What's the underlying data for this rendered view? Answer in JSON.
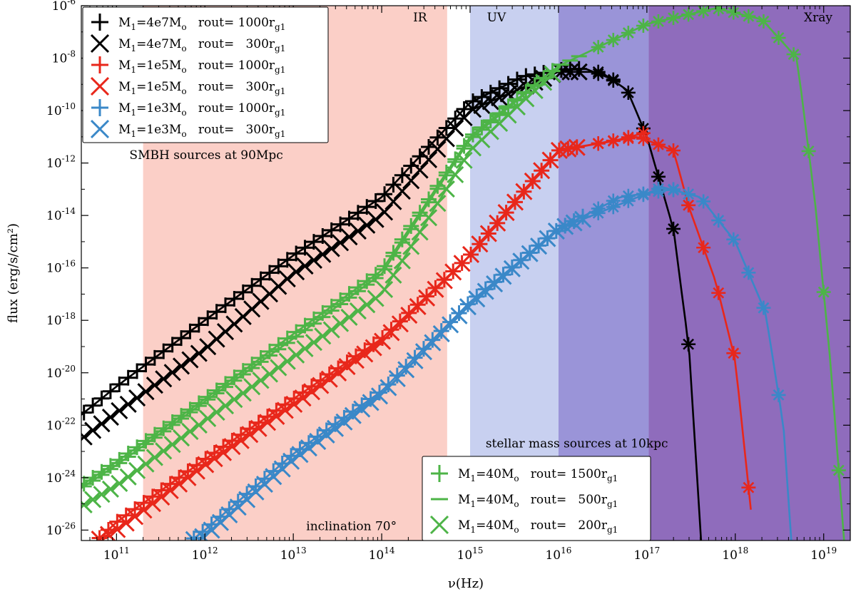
{
  "chart_data": {
    "type": "line",
    "title": "",
    "xlabel": "ν(Hz)",
    "ylabel": "flux (erg/s/cm²)",
    "xscale": "log",
    "yscale": "log",
    "xlim": [
      40000000000.0,
      2e+19
    ],
    "ylim": [
      4e-27,
      1e-06
    ],
    "x_ticks": [
      {
        "value": 100000000000.0,
        "label": "10^11"
      },
      {
        "value": 1000000000000.0,
        "label": "10^12"
      },
      {
        "value": 10000000000000.0,
        "label": "10^13"
      },
      {
        "value": 100000000000000.0,
        "label": "10^14"
      },
      {
        "value": 1000000000000000.0,
        "label": "10^15"
      },
      {
        "value": 1e+16,
        "label": "10^16"
      },
      {
        "value": 1e+17,
        "label": "10^17"
      },
      {
        "value": 1e+18,
        "label": "10^18"
      },
      {
        "value": 1e+19,
        "label": "10^19"
      }
    ],
    "y_ticks": [
      {
        "value": 1e-06,
        "label": "10^-6"
      },
      {
        "value": 1e-08,
        "label": "10^-8"
      },
      {
        "value": 1e-10,
        "label": "10^-10"
      },
      {
        "value": 1e-12,
        "label": "10^-12"
      },
      {
        "value": 1e-14,
        "label": "10^-14"
      },
      {
        "value": 1e-16,
        "label": "10^-16"
      },
      {
        "value": 1e-18,
        "label": "10^-18"
      },
      {
        "value": 1e-20,
        "label": "10^-20"
      },
      {
        "value": 1e-22,
        "label": "10^-22"
      },
      {
        "value": 1e-24,
        "label": "10^-24"
      },
      {
        "value": 1e-26,
        "label": "10^-26"
      }
    ],
    "bands": [
      {
        "name": "IR",
        "label": "IR",
        "x_range": [
          200000000000.0,
          550000000000000.0
        ],
        "color": "#fbcfc7"
      },
      {
        "name": "UV",
        "label": "UV",
        "x_range": [
          1000000000000000.0,
          1e+16
        ],
        "color": "#c8d0f0"
      },
      {
        "name": "EUV",
        "label": "",
        "x_range": [
          1e+16,
          1.05e+17
        ],
        "color": "#9a94d8"
      },
      {
        "name": "Xray",
        "label": "Xray",
        "x_range": [
          1.05e+17,
          2e+19
        ],
        "color": "#8f6cbc"
      }
    ],
    "annotations": [
      {
        "text": "SMBH sources at 90Mpc",
        "at": [
          140000000000.0,
          1.4e-12
        ]
      },
      {
        "text": "stellar mass sources at 10kpc",
        "at": [
          1500000000000000.0,
          1.4e-23
        ]
      },
      {
        "text": "inclination 70°",
        "at": [
          14000000000000.0,
          1e-26
        ]
      }
    ],
    "series": [
      {
        "name": "M1=4e7Mo rout=1000rg1",
        "color": "#000000",
        "marker": "plus",
        "legend": "smbh",
        "x": [
          40000000000.0,
          100000000000.0,
          1000000000000.0,
          10000000000000.0,
          100000000000000.0,
          1000000000000000.0,
          4000000000000000.0,
          1e+16,
          2e+16,
          5e+16
        ],
        "y": [
          2.5e-22,
          3e-21,
          1e-18,
          3e-16,
          5e-14,
          2e-10,
          2e-09,
          3.5e-09,
          4e-09,
          1.2e-09
        ]
      },
      {
        "name": "M1=4e7Mo rout=300rg1",
        "color": "#000000",
        "marker": "x",
        "legend": "smbh",
        "x": [
          40000000000.0,
          100000000000.0,
          1000000000000.0,
          10000000000000.0,
          100000000000000.0,
          1000000000000000.0,
          1e+16,
          3e+16,
          6e+16,
          1e+17,
          2e+17,
          3e+17,
          4.1e+17
        ],
        "y": [
          3e-23,
          3e-22,
          8e-20,
          6e-17,
          1e-14,
          1e-10,
          3e-09,
          3e-09,
          6e-10,
          1e-11,
          3e-15,
          8e-20,
          4e-27
        ]
      },
      {
        "name": "M1=1e5Mo rout=1000rg1",
        "color": "#e8271b",
        "marker": "plus",
        "legend": "smbh",
        "x": [
          60000000000.0,
          100000000000.0,
          1000000000000.0,
          10000000000000.0,
          100000000000000.0,
          1000000000000000.0,
          1e+16,
          5e+16,
          1e+17
        ],
        "y": [
          4e-27,
          2e-26,
          5e-24,
          1e-21,
          2e-19,
          3e-16,
          3e-12,
          8e-12,
          1.5e-11
        ]
      },
      {
        "name": "M1=1e5Mo rout=300rg1",
        "color": "#e8271b",
        "marker": "x",
        "legend": "smbh",
        "x": [
          60000000000.0,
          100000000000.0,
          1000000000000.0,
          10000000000000.0,
          100000000000000.0,
          1000000000000000.0,
          1e+16,
          8e+16,
          2e+17,
          3e+17,
          6e+17,
          1e+18,
          1.5e+18
        ],
        "y": [
          4e-27,
          1e-26,
          3e-24,
          6e-22,
          1.5e-19,
          3e-16,
          3e-12,
          1e-11,
          3e-12,
          2e-14,
          3e-17,
          3e-20,
          6e-26
        ]
      },
      {
        "name": "M1=1e3Mo rout=1000rg1",
        "color": "#3a88c8",
        "marker": "plus",
        "legend": "smbh",
        "x": [
          700000000000.0,
          1000000000000.0,
          10000000000000.0,
          100000000000000.0,
          1000000000000000.0,
          1e+16,
          5e+16,
          2e+17
        ],
        "y": [
          4e-27,
          1e-26,
          8e-24,
          2e-21,
          5e-18,
          3e-15,
          5e-14,
          1e-13
        ]
      },
      {
        "name": "M1=1e3Mo rout=300rg1",
        "color": "#3a88c8",
        "marker": "x",
        "legend": "smbh",
        "x": [
          700000000000.0,
          1000000000000.0,
          10000000000000.0,
          100000000000000.0,
          1000000000000000.0,
          1e+16,
          1.5e+17,
          4e+17,
          1e+18,
          2.2e+18,
          3.5e+18,
          4.3e+18
        ],
        "y": [
          4e-27,
          6e-27,
          5e-24,
          1.5e-21,
          4e-18,
          3e-15,
          1.2e-13,
          5e-14,
          1e-15,
          2e-18,
          1e-22,
          4e-27
        ]
      },
      {
        "name": "M1=40Mo rout=1500rg1",
        "color": "#4db447",
        "marker": "plus",
        "legend": "stellar",
        "x": [
          40000000000.0,
          100000000000.0,
          1000000000000.0,
          10000000000000.0,
          100000000000000.0,
          1000000000000000.0,
          1e+16
        ],
        "y": [
          5e-25,
          4e-24,
          1e-21,
          3e-19,
          8e-17,
          1e-11,
          5e-09
        ]
      },
      {
        "name": "M1=40Mo rout=500rg1",
        "color": "#4db447",
        "marker": "dash",
        "legend": "stellar",
        "x": [
          40000000000.0,
          100000000000.0,
          1000000000000.0,
          10000000000000.0,
          100000000000000.0,
          1000000000000000.0,
          1e+16,
          1e+17,
          6e+17,
          2e+18,
          5e+18,
          8e+18,
          1.2e+19,
          1.7e+19
        ],
        "y": [
          4e-25,
          3e-24,
          8e-22,
          2e-19,
          6e-17,
          8e-12,
          5e-09,
          2e-07,
          8e-07,
          3e-07,
          1e-08,
          3e-14,
          2e-20,
          4e-27
        ]
      },
      {
        "name": "M1=40Mo rout=200rg1",
        "color": "#4db447",
        "marker": "x",
        "legend": "stellar",
        "x": [
          40000000000.0,
          100000000000.0,
          1000000000000.0,
          10000000000000.0,
          100000000000000.0,
          1000000000000000.0,
          1e+16
        ],
        "y": [
          8e-26,
          5e-25,
          1.5e-22,
          4e-20,
          1e-17,
          3e-12,
          4e-09
        ]
      }
    ],
    "legend_smbh": {
      "placement": "top-left",
      "entries": [
        {
          "color": "#000000",
          "marker": "plus",
          "mass": "4e7",
          "rout": "1000"
        },
        {
          "color": "#000000",
          "marker": "x",
          "mass": "4e7",
          "rout": "300"
        },
        {
          "color": "#e8271b",
          "marker": "plus",
          "mass": "1e5",
          "rout": "1000"
        },
        {
          "color": "#e8271b",
          "marker": "x",
          "mass": "1e5",
          "rout": "300"
        },
        {
          "color": "#3a88c8",
          "marker": "plus",
          "mass": "1e3",
          "rout": "1000"
        },
        {
          "color": "#3a88c8",
          "marker": "x",
          "mass": "1e3",
          "rout": "300"
        }
      ]
    },
    "legend_stellar": {
      "placement": "bottom-center",
      "entries": [
        {
          "color": "#4db447",
          "marker": "plus",
          "mass": "40",
          "rout": "1500"
        },
        {
          "color": "#4db447",
          "marker": "dash",
          "mass": "40",
          "rout": "500"
        },
        {
          "color": "#4db447",
          "marker": "x",
          "mass": "40",
          "rout": "200"
        }
      ]
    }
  }
}
